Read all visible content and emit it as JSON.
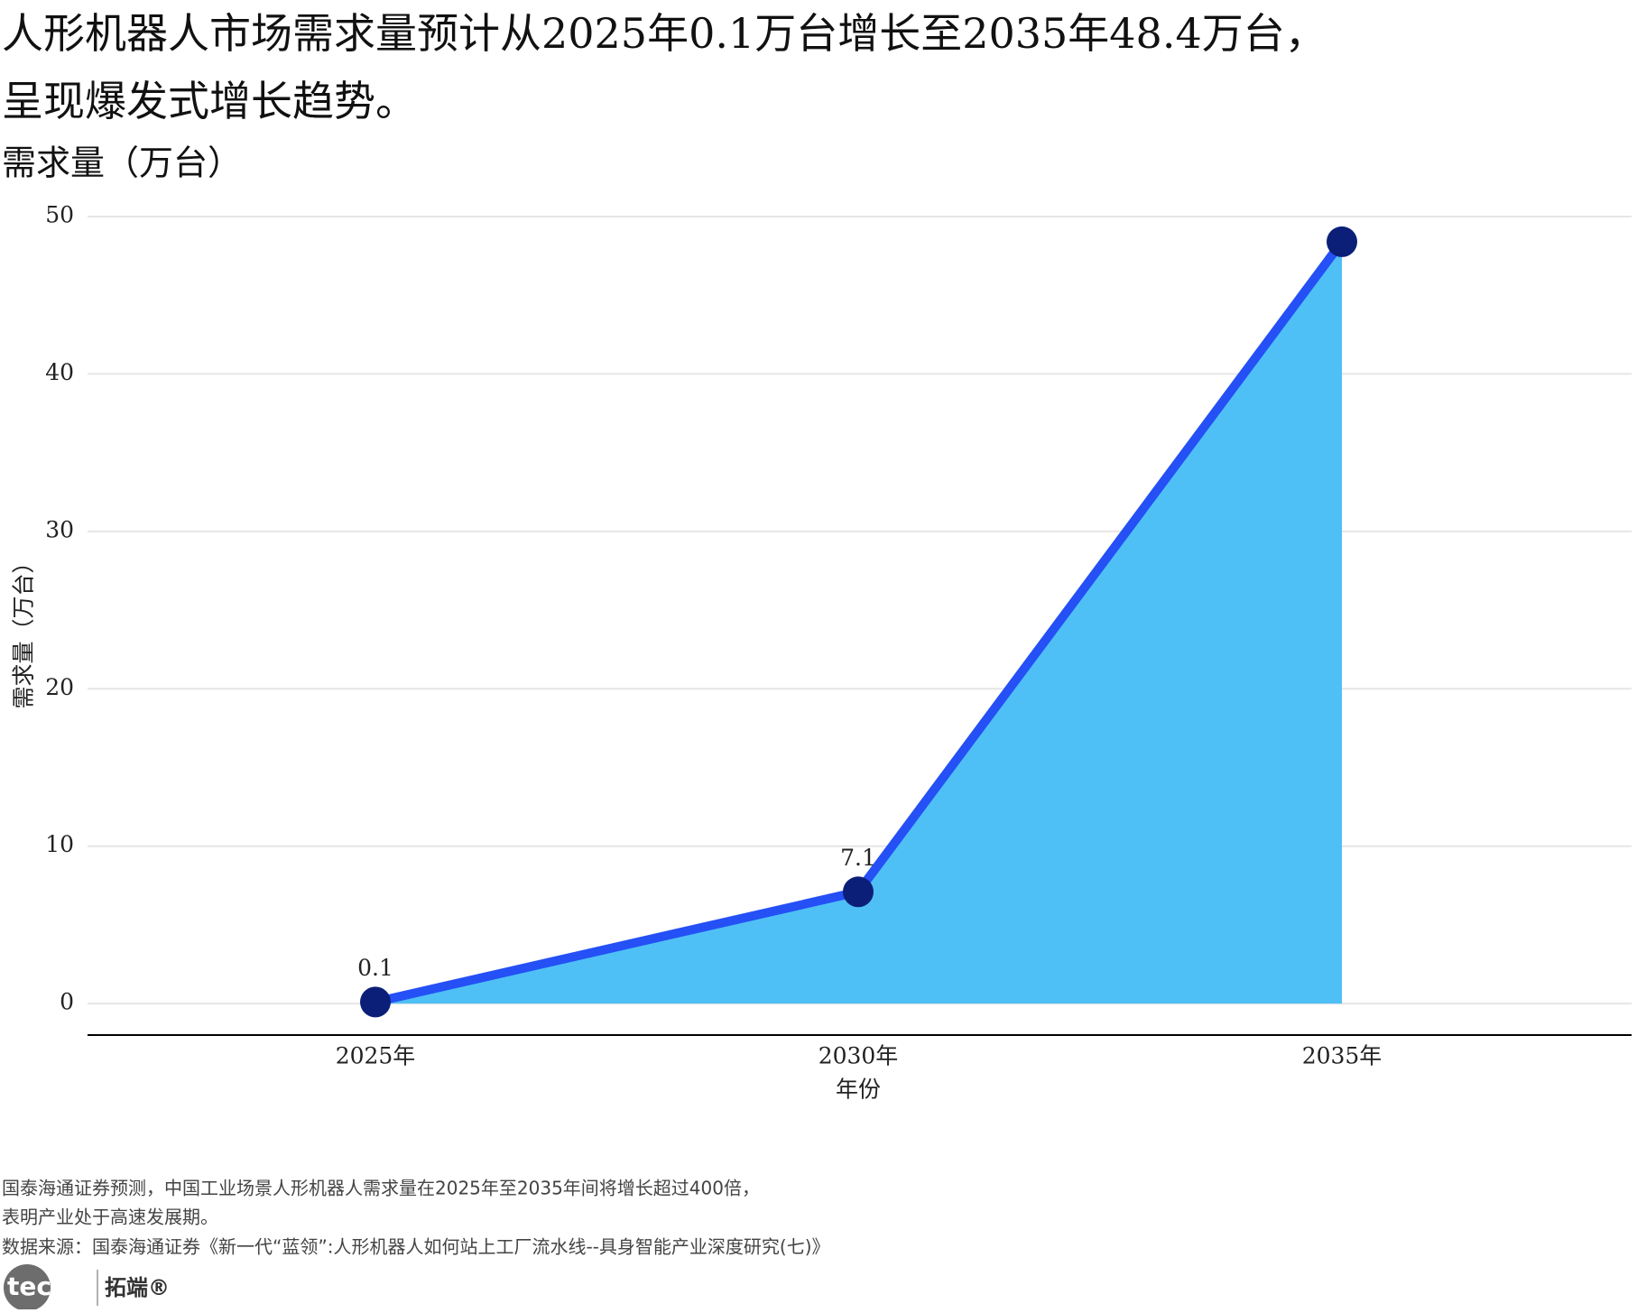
{
  "chart_data": {
    "type": "area-line",
    "title": [
      "人形机器人市场需求量预计从2025年0.1万台增长至2035年48.4万台，",
      "呈现爆发式增长趋势。"
    ],
    "subtitle": "需求量（万台）",
    "categories": [
      "2025年",
      "2030年",
      "2035年"
    ],
    "values": [
      0.1,
      7.1,
      48.4
    ],
    "x_label": "年份",
    "y_label": "需求量（万台）",
    "ylim": [
      -2,
      50
    ],
    "yticks": [
      0,
      10,
      20,
      30,
      40,
      50
    ],
    "grid": true,
    "line_color": "#2450f5",
    "area_color": "#4fc0f5",
    "marker_color": "#0b1f78"
  },
  "notes": [
    "国泰海通证券预测，中国工业场景人形机器人需求量在2025年至2035年间将增长超过400倍，",
    "表明产业处于高速发展期。",
    "数据来源：国泰海通证券《新一代“蓝领”:人形机器人如何站上工厂流水线--具身智能产业深度研究(七)》"
  ],
  "logo": {
    "mark": "tecdat",
    "text": "拓端®"
  }
}
